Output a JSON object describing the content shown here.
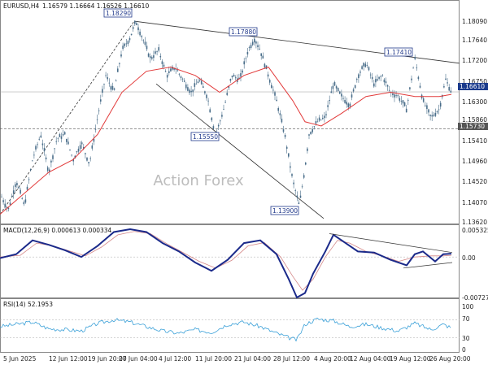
{
  "main": {
    "title": "EURUSD,H4",
    "ohlc": "1.16579 1.16664 1.16526 1.16610",
    "watermark": "Action Forex",
    "y_ticks": [
      "1.18090",
      "1.17640",
      "1.17200",
      "1.16750",
      "1.16300",
      "1.15860",
      "1.15410",
      "1.14960",
      "1.14520",
      "1.14070",
      "1.13620"
    ],
    "annotations": [
      {
        "text": "1.18290"
      },
      {
        "text": "1.17880"
      },
      {
        "text": "1.17410"
      },
      {
        "text": "1.15550"
      },
      {
        "text": "1.13900"
      }
    ],
    "current_price_label": "1.16610",
    "support_level_label": "1.15730",
    "colors": {
      "up": "#4a6e8a",
      "ma": "#e23a3a",
      "current": "#1a3a8c",
      "support": "#555555"
    }
  },
  "macd": {
    "title": "MACD(12,26,9) 0.000613 0.000334",
    "y_ticks": [
      "0.005325",
      "0.00",
      "-0.007273"
    ],
    "colors": {
      "main": "#1b2a8a",
      "signal": "#d48888"
    }
  },
  "rsi": {
    "title": "RSI(14) 52.1953",
    "y_ticks": [
      "100",
      "70",
      "30",
      "0"
    ],
    "colors": {
      "line": "#3aa0d8"
    }
  },
  "x_ticks": [
    "5 Jun 2025",
    "12 Jun 12:00",
    "19 Jun 20:00",
    "27 Jun 04:00",
    "4 Jul 12:00",
    "11 Jul 20:00",
    "21 Jul 04:00",
    "28 Jul 12:00",
    "4 Aug 20:00",
    "12 Aug 04:00",
    "19 Aug 12:00",
    "26 Aug 20:00"
  ],
  "chart_data": [
    {
      "type": "candlestick",
      "symbol": "EURUSD",
      "timeframe": "H4",
      "ylim": [
        1.1352,
        1.186
      ],
      "price_path": [
        [
          0,
          1.142
        ],
        [
          10,
          1.138
        ],
        [
          20,
          1.145
        ],
        [
          30,
          1.139
        ],
        [
          40,
          1.15
        ],
        [
          50,
          1.156
        ],
        [
          60,
          1.147
        ],
        [
          70,
          1.155
        ],
        [
          80,
          1.156
        ],
        [
          90,
          1.15
        ],
        [
          100,
          1.154
        ],
        [
          110,
          1.149
        ],
        [
          120,
          1.16
        ],
        [
          130,
          1.17
        ],
        [
          140,
          1.166
        ],
        [
          150,
          1.176
        ],
        [
          160,
          1.179
        ],
        [
          167,
          1.1829
        ],
        [
          175,
          1.179
        ],
        [
          185,
          1.174
        ],
        [
          195,
          1.176
        ],
        [
          205,
          1.17
        ],
        [
          215,
          1.172
        ],
        [
          225,
          1.169
        ],
        [
          235,
          1.166
        ],
        [
          245,
          1.169
        ],
        [
          255,
          1.165
        ],
        [
          265,
          1.1555
        ],
        [
          275,
          1.162
        ],
        [
          285,
          1.17
        ],
        [
          295,
          1.169
        ],
        [
          305,
          1.176
        ],
        [
          313,
          1.1788
        ],
        [
          320,
          1.176
        ],
        [
          330,
          1.17
        ],
        [
          340,
          1.164
        ],
        [
          350,
          1.156
        ],
        [
          360,
          1.145
        ],
        [
          368,
          1.139
        ],
        [
          375,
          1.148
        ],
        [
          380,
          1.156
        ],
        [
          390,
          1.159
        ],
        [
          400,
          1.16
        ],
        [
          410,
          1.168
        ],
        [
          420,
          1.165
        ],
        [
          430,
          1.163
        ],
        [
          440,
          1.17
        ],
        [
          450,
          1.173
        ],
        [
          460,
          1.168
        ],
        [
          470,
          1.17
        ],
        [
          480,
          1.166
        ],
        [
          490,
          1.165
        ],
        [
          500,
          1.162
        ],
        [
          510,
          1.1741
        ],
        [
          520,
          1.164
        ],
        [
          530,
          1.16
        ],
        [
          540,
          1.162
        ],
        [
          548,
          1.169
        ],
        [
          555,
          1.1661
        ]
      ],
      "moving_average": [
        [
          0,
          1.137
        ],
        [
          30,
          1.142
        ],
        [
          60,
          1.147
        ],
        [
          90,
          1.15
        ],
        [
          120,
          1.156
        ],
        [
          150,
          1.166
        ],
        [
          180,
          1.171
        ],
        [
          210,
          1.172
        ],
        [
          240,
          1.17
        ],
        [
          270,
          1.166
        ],
        [
          300,
          1.17
        ],
        [
          330,
          1.172
        ],
        [
          345,
          1.168
        ],
        [
          360,
          1.164
        ],
        [
          375,
          1.159
        ],
        [
          395,
          1.158
        ],
        [
          420,
          1.161
        ],
        [
          450,
          1.165
        ],
        [
          480,
          1.166
        ],
        [
          510,
          1.165
        ],
        [
          540,
          1.165
        ],
        [
          555,
          1.1655
        ]
      ],
      "annotations": [
        {
          "label": "1.18290",
          "x": 167,
          "y": 1.1829
        },
        {
          "label": "1.17880",
          "x": 313,
          "y": 1.1788
        },
        {
          "label": "1.17410",
          "x": 510,
          "y": 1.1741
        },
        {
          "label": "1.15550",
          "x": 265,
          "y": 1.1555
        },
        {
          "label": "1.13900",
          "x": 368,
          "y": 1.139
        }
      ],
      "levels": {
        "current": 1.1661,
        "support": 1.1573
      }
    },
    {
      "type": "line",
      "name": "MACD(12,26,9)",
      "ylim": [
        -0.0073,
        0.0053
      ],
      "macd": [
        [
          0,
          -0.0002
        ],
        [
          20,
          0.0005
        ],
        [
          40,
          0.003
        ],
        [
          60,
          0.0022
        ],
        [
          80,
          0.0012
        ],
        [
          100,
          0.0
        ],
        [
          120,
          0.002
        ],
        [
          140,
          0.0045
        ],
        [
          160,
          0.005
        ],
        [
          180,
          0.0045
        ],
        [
          200,
          0.0025
        ],
        [
          220,
          0.001
        ],
        [
          240,
          -0.001
        ],
        [
          260,
          -0.0025
        ],
        [
          280,
          -0.0005
        ],
        [
          300,
          0.0025
        ],
        [
          320,
          0.003
        ],
        [
          340,
          0.0005
        ],
        [
          355,
          -0.004
        ],
        [
          365,
          -0.0073
        ],
        [
          375,
          -0.0065
        ],
        [
          385,
          -0.003
        ],
        [
          400,
          0.001
        ],
        [
          410,
          0.004
        ],
        [
          420,
          0.003
        ],
        [
          440,
          0.001
        ],
        [
          460,
          0.0008
        ],
        [
          480,
          -0.0005
        ],
        [
          500,
          -0.0015
        ],
        [
          510,
          0.0005
        ],
        [
          520,
          0.001
        ],
        [
          535,
          -0.0008
        ],
        [
          545,
          0.0005
        ],
        [
          555,
          0.0006
        ]
      ],
      "signal": [
        [
          0,
          0.0
        ],
        [
          25,
          0.0003
        ],
        [
          45,
          0.0025
        ],
        [
          65,
          0.002
        ],
        [
          85,
          0.0011
        ],
        [
          105,
          0.0002
        ],
        [
          125,
          0.0018
        ],
        [
          145,
          0.004
        ],
        [
          165,
          0.0046
        ],
        [
          185,
          0.0042
        ],
        [
          205,
          0.0024
        ],
        [
          225,
          0.0008
        ],
        [
          245,
          -0.0008
        ],
        [
          265,
          -0.002
        ],
        [
          285,
          -0.0006
        ],
        [
          305,
          0.002
        ],
        [
          325,
          0.0026
        ],
        [
          345,
          0.0
        ],
        [
          360,
          -0.0035
        ],
        [
          372,
          -0.006
        ],
        [
          385,
          -0.004
        ],
        [
          400,
          0.0
        ],
        [
          415,
          0.003
        ],
        [
          430,
          0.0025
        ],
        [
          450,
          0.001
        ],
        [
          470,
          0.0002
        ],
        [
          490,
          -0.0008
        ],
        [
          510,
          0.0
        ],
        [
          530,
          0.0002
        ],
        [
          545,
          0.0002
        ],
        [
          555,
          0.0003
        ]
      ]
    },
    {
      "type": "line",
      "name": "RSI(14)",
      "ylim": [
        0,
        100
      ],
      "levels": [
        70,
        30
      ],
      "values": [
        [
          0,
          55
        ],
        [
          20,
          60
        ],
        [
          40,
          65
        ],
        [
          60,
          50
        ],
        [
          80,
          48
        ],
        [
          100,
          45
        ],
        [
          120,
          62
        ],
        [
          140,
          70
        ],
        [
          160,
          65
        ],
        [
          180,
          55
        ],
        [
          200,
          45
        ],
        [
          220,
          40
        ],
        [
          240,
          48
        ],
        [
          260,
          42
        ],
        [
          280,
          60
        ],
        [
          300,
          65
        ],
        [
          320,
          55
        ],
        [
          340,
          40
        ],
        [
          355,
          30
        ],
        [
          365,
          25
        ],
        [
          375,
          60
        ],
        [
          390,
          72
        ],
        [
          410,
          68
        ],
        [
          430,
          55
        ],
        [
          450,
          60
        ],
        [
          470,
          52
        ],
        [
          490,
          45
        ],
        [
          510,
          62
        ],
        [
          530,
          48
        ],
        [
          545,
          60
        ],
        [
          555,
          52
        ]
      ]
    }
  ]
}
